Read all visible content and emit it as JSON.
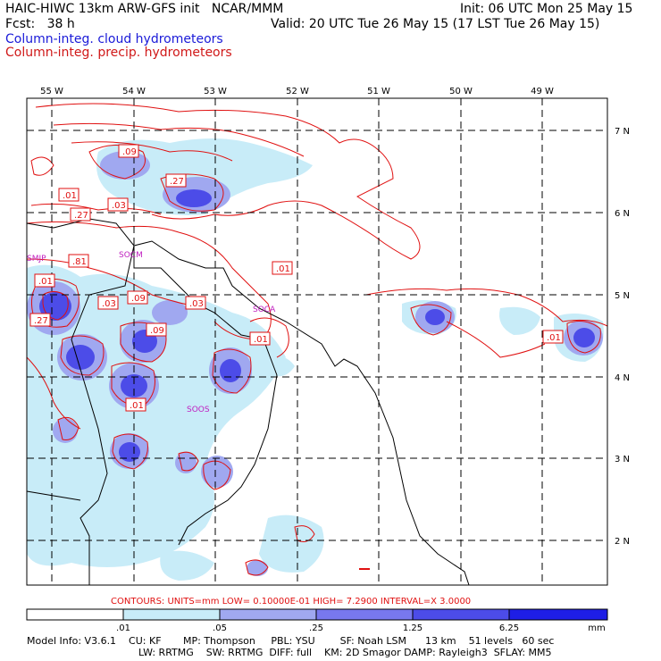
{
  "header": {
    "title": "HAIC-HIWC 13km ARW-GFS init   NCAR/MMM",
    "forecast": "Fcst:   38 h",
    "init": "Init: 06 UTC Mon 25 May 15",
    "valid": "Valid: 20 UTC Tue 26 May 15 (17 LST Tue 26 May 15)",
    "field1": "Column-integ. cloud hydrometeors",
    "field2": "Column-integ. precip. hydrometeors"
  },
  "map": {
    "lon_labels": [
      "55 W",
      "54 W",
      "53 W",
      "52 W",
      "51 W",
      "50 W",
      "49 W"
    ],
    "lat_labels": [
      "7 N",
      "6 N",
      "5 N",
      "4 N",
      "3 N",
      "2 N"
    ],
    "stations": [
      "SMJP",
      "SOCA",
      "SOCM",
      "SOOS"
    ],
    "contour_labels": [
      ".09",
      ".27",
      ".01",
      ".03",
      ".27",
      ".01",
      ".81",
      ".01",
      ".03",
      ".09",
      ".03",
      ".27",
      ".09",
      ".01",
      ".01",
      ".01"
    ],
    "colors": {
      "cloud_dark": "#1c1ce8",
      "cloud_mid": "#7878f0",
      "cloud_light": "#c8e8f8",
      "precip": "#e01010",
      "coast": "#000000"
    }
  },
  "contours_line": "CONTOURS:  UNITS=mm  LOW= 0.10000E-01  HIGH=  7.2900     INTERVAL=X  3.0000",
  "colorbar": {
    "ticks": [
      ".01",
      ".05",
      ".25",
      "1.25",
      "6.25"
    ],
    "units": "mm",
    "colors": [
      "#ffffff",
      "#c8ecf8",
      "#a0a8f0",
      "#7878ee",
      "#4c4ce8",
      "#1e1ee6"
    ]
  },
  "model_info": {
    "line1": "Model Info: V3.6.1    CU: KF       MP: Thompson     PBL: YSU        SF: Noah LSM      13 km    51 levels   60 sec",
    "line2": "LW: RRTMG    SW: RRTMG  DIFF: full    KM: 2D Smagor DAMP: Rayleigh3  SFLAY: MM5"
  }
}
